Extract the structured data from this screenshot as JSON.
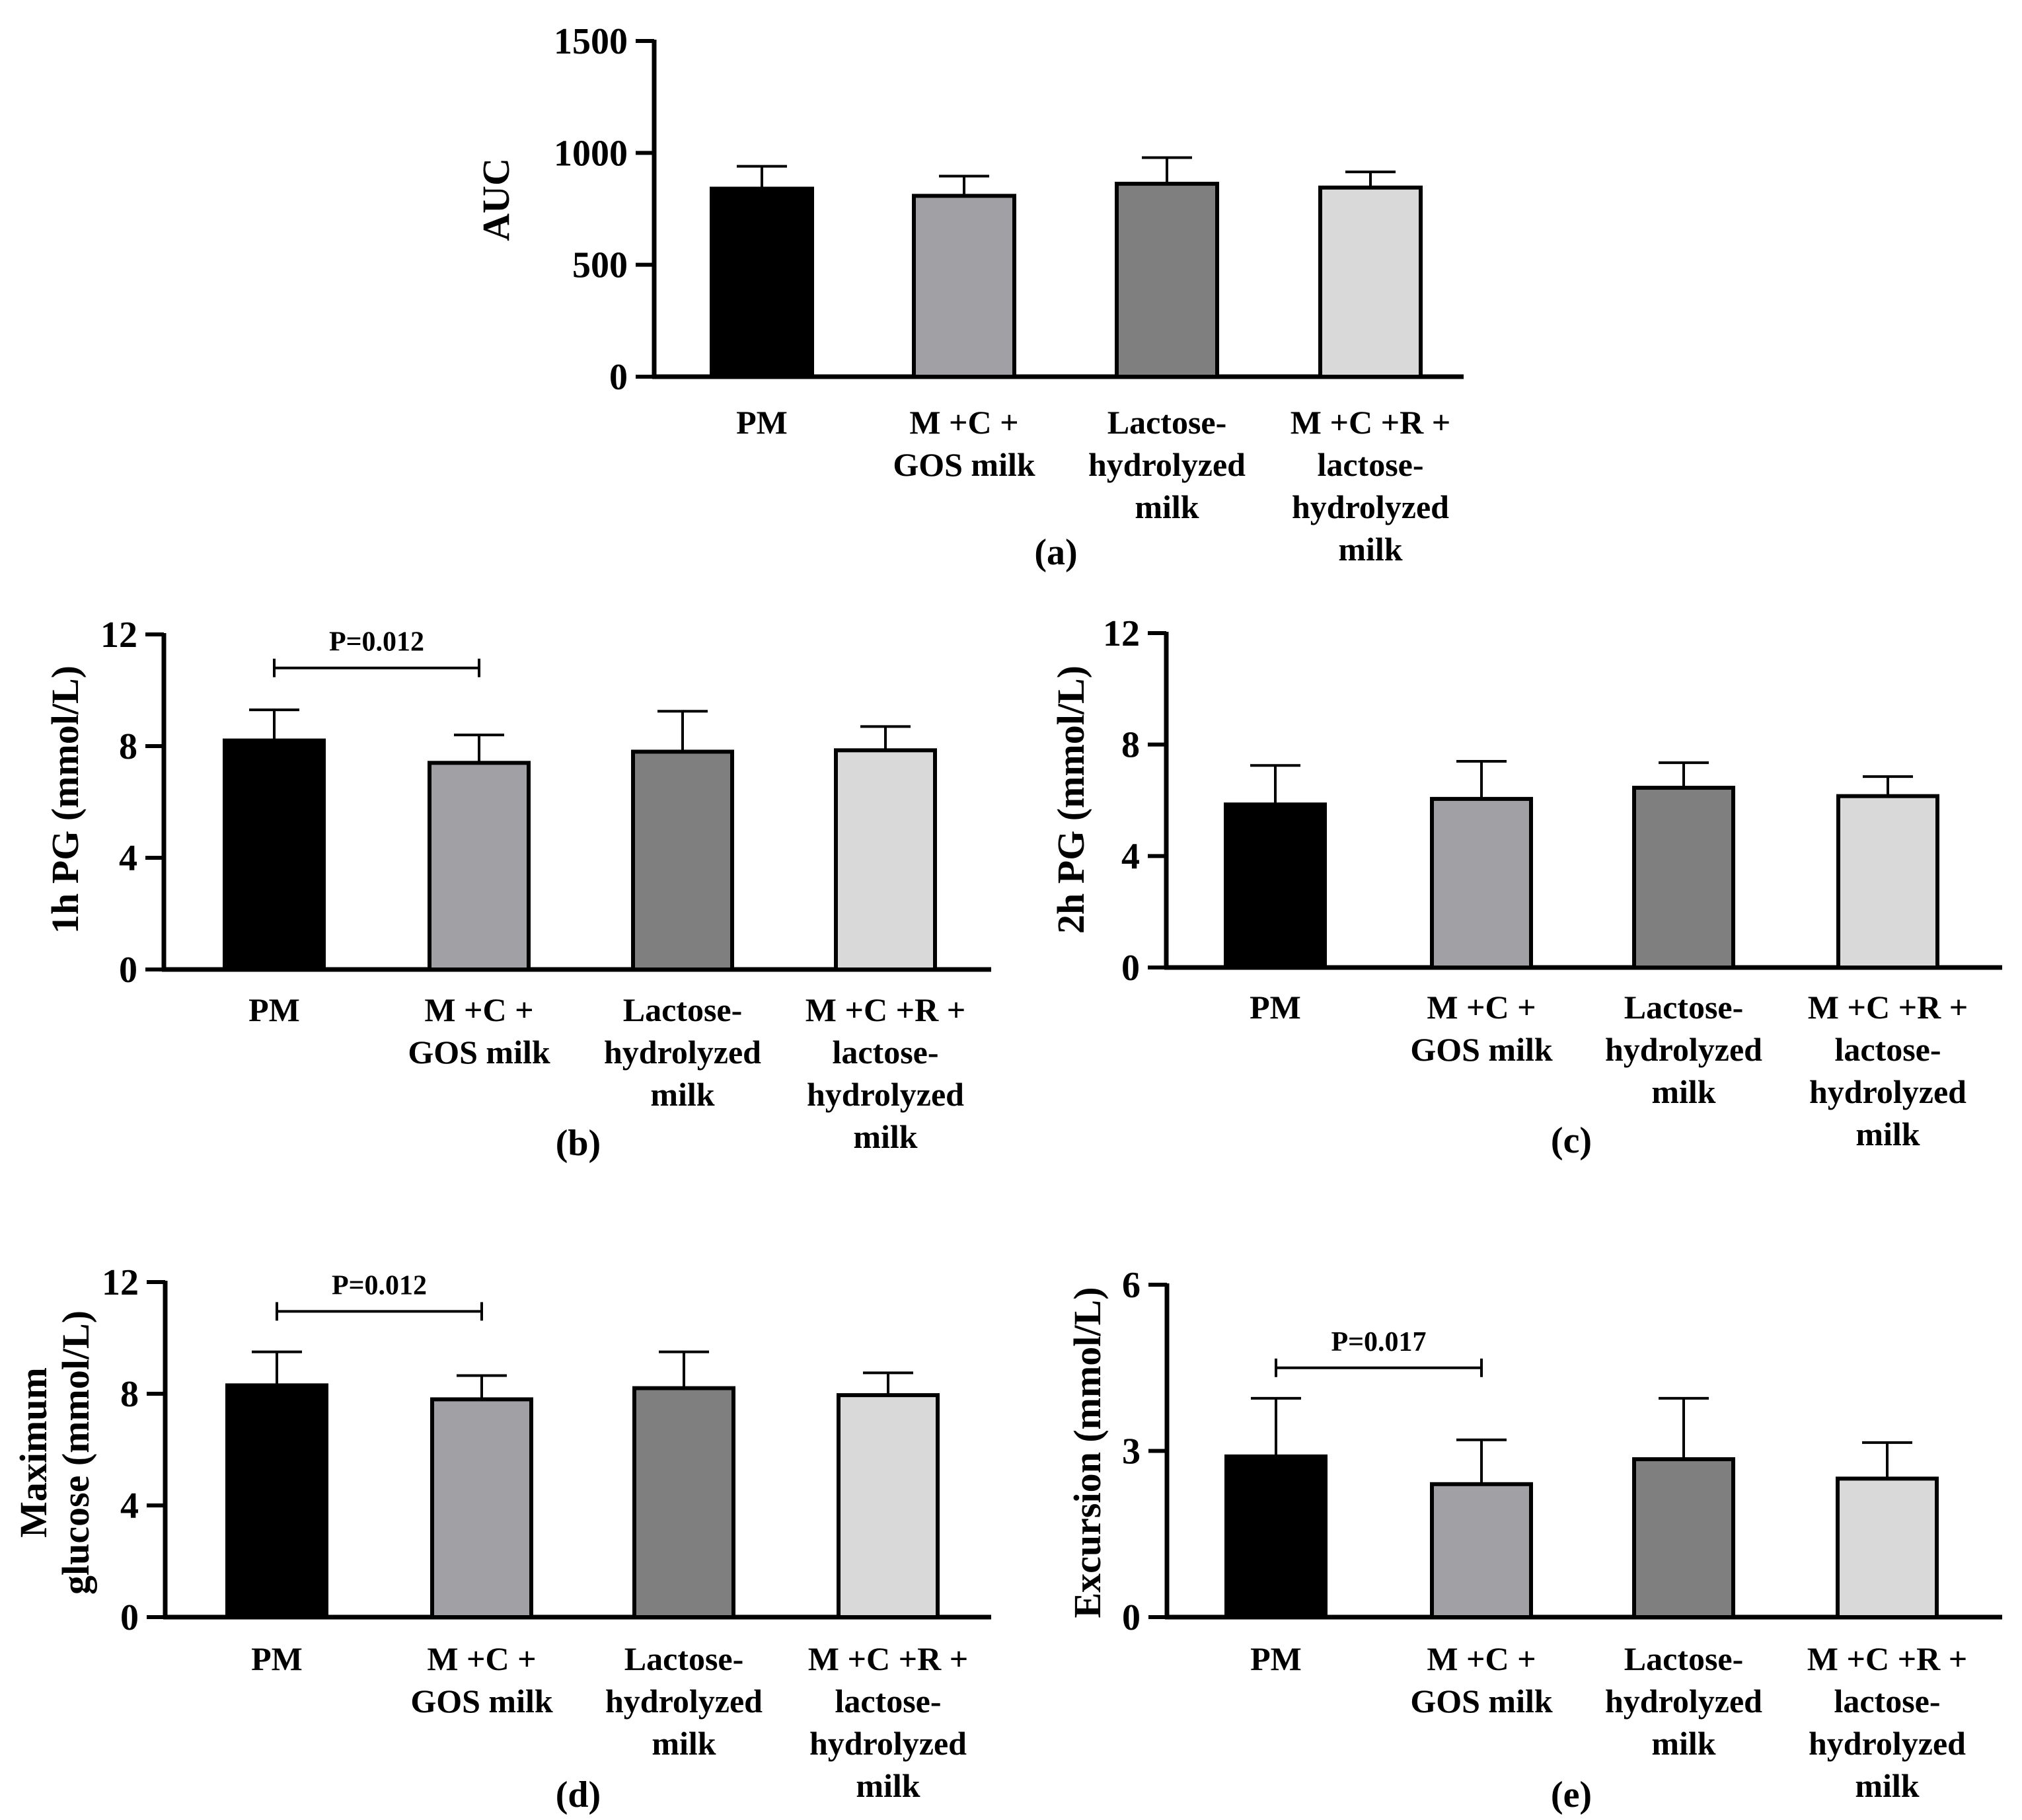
{
  "categories": [
    [
      "PM"
    ],
    [
      "M +C +",
      "GOS milk"
    ],
    [
      "Lactose-",
      "hydrolyzed",
      "milk"
    ],
    [
      "M +C +R +",
      "lactose-",
      "hydrolyzed",
      "milk"
    ]
  ],
  "bar_colors": [
    "#000000",
    "#a1a1a5",
    "#7f7f7f",
    "#d9d9d9"
  ],
  "chart_data": [
    {
      "type": "bar",
      "panel": "(a)",
      "ylabel": [
        "AUC"
      ],
      "ylim": [
        0,
        1500
      ],
      "yticks": [
        0,
        500,
        1000,
        1500
      ],
      "values": [
        840,
        808,
        862,
        845
      ],
      "errors": [
        100,
        88,
        117,
        70
      ],
      "significance": []
    },
    {
      "type": "bar",
      "panel": "(b)",
      "ylabel": [
        "1h PG (mmol/L)"
      ],
      "ylim": [
        0,
        12
      ],
      "yticks": [
        0,
        4,
        8,
        12
      ],
      "values": [
        8.2,
        7.4,
        7.8,
        7.85
      ],
      "errors": [
        1.1,
        1.0,
        1.45,
        0.85
      ],
      "significance": [
        {
          "from": 0,
          "to": 1,
          "label": "P=0.012",
          "y": 10.8
        }
      ]
    },
    {
      "type": "bar",
      "panel": "(c)",
      "ylabel": [
        "2h PG (mmol/L)"
      ],
      "ylim": [
        0,
        12
      ],
      "yticks": [
        0,
        4,
        8,
        12
      ],
      "values": [
        5.85,
        6.05,
        6.45,
        6.15
      ],
      "errors": [
        1.4,
        1.35,
        0.9,
        0.7
      ],
      "significance": []
    },
    {
      "type": "bar",
      "panel": "(d)",
      "ylabel": [
        "Maximum",
        "glucose (mmol/L)"
      ],
      "ylim": [
        0,
        12
      ],
      "yticks": [
        0,
        4,
        8,
        12
      ],
      "values": [
        8.3,
        7.8,
        8.2,
        7.95
      ],
      "errors": [
        1.2,
        0.85,
        1.3,
        0.8
      ],
      "significance": [
        {
          "from": 0,
          "to": 1,
          "label": "P=0.012",
          "y": 10.95
        }
      ]
    },
    {
      "type": "bar",
      "panel": "(e)",
      "ylabel": [
        "Excursion (mmol/L)"
      ],
      "ylim": [
        0,
        6
      ],
      "yticks": [
        0,
        3,
        6
      ],
      "values": [
        2.9,
        2.4,
        2.85,
        2.5
      ],
      "errors": [
        1.05,
        0.8,
        1.1,
        0.65
      ],
      "significance": [
        {
          "from": 0,
          "to": 1,
          "label": "P=0.017",
          "y": 4.5
        }
      ]
    }
  ]
}
